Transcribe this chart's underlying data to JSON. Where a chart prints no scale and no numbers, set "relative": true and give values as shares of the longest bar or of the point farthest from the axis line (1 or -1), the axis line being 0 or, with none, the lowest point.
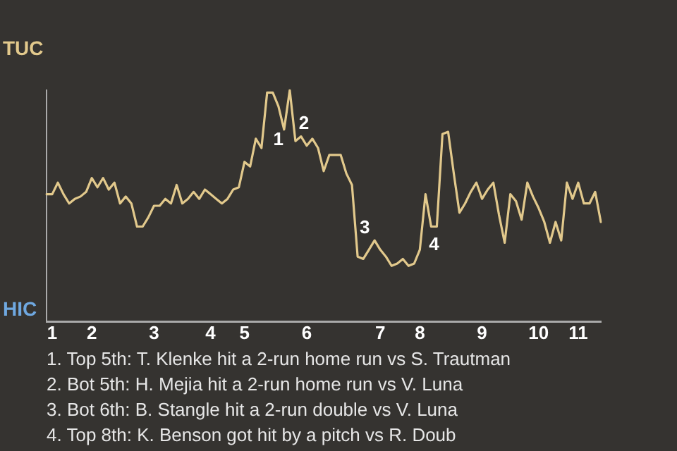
{
  "chart_data": {
    "type": "line",
    "relative": true,
    "categories": [
      null,
      "1",
      null,
      null,
      null,
      null,
      null,
      null,
      "2",
      null,
      null,
      null,
      null,
      null,
      null,
      null,
      null,
      null,
      null,
      "3",
      null,
      null,
      null,
      null,
      null,
      null,
      null,
      null,
      null,
      "4",
      null,
      null,
      null,
      null,
      null,
      "5",
      null,
      null,
      null,
      null,
      null,
      null,
      null,
      null,
      null,
      null,
      "6",
      null,
      null,
      null,
      null,
      null,
      null,
      null,
      null,
      null,
      null,
      null,
      null,
      "7",
      null,
      null,
      null,
      null,
      null,
      null,
      "8",
      null,
      null,
      null,
      null,
      null,
      null,
      null,
      null,
      null,
      null,
      "9",
      null,
      null,
      null,
      null,
      null,
      null,
      null,
      null,
      null,
      "10",
      null,
      null,
      null,
      null,
      null,
      null,
      "11",
      null,
      null,
      null,
      null
    ],
    "color": "#e2c98c",
    "values": [
      0.55,
      0.55,
      0.6,
      0.55,
      0.51,
      0.53,
      0.54,
      0.56,
      0.62,
      0.58,
      0.62,
      0.57,
      0.6,
      0.51,
      0.54,
      0.51,
      0.41,
      0.41,
      0.45,
      0.5,
      0.5,
      0.53,
      0.51,
      0.59,
      0.51,
      0.53,
      0.56,
      0.53,
      0.57,
      0.55,
      0.53,
      0.51,
      0.53,
      0.57,
      0.58,
      0.69,
      0.67,
      0.79,
      0.75,
      0.99,
      0.99,
      0.93,
      0.83,
      1,
      0.78,
      0.8,
      0.76,
      0.79,
      0.75,
      0.65,
      0.72,
      0.72,
      0.72,
      0.64,
      0.59,
      0.28,
      0.27,
      0.31,
      0.35,
      0.31,
      0.28,
      0.24,
      0.25,
      0.27,
      0.24,
      0.25,
      0.31,
      0.55,
      0.41,
      0.41,
      0.81,
      0.82,
      0.64,
      0.47,
      0.51,
      0.56,
      0.6,
      0.53,
      0.57,
      0.6,
      0.46,
      0.34,
      0.55,
      0.52,
      0.44,
      0.6,
      0.54,
      0.49,
      0.43,
      0.34,
      0.43,
      0.35,
      0.6,
      0.53,
      0.6,
      0.51,
      0.51,
      0.56,
      0.43
    ],
    "marker": "none",
    "annotations": [
      "TUC",
      "HIC",
      {
        "text": "1",
        "y": 0.93
      },
      {
        "text": "2",
        "y": 0.78
      },
      {
        "text": "3",
        "y": 0.28
      },
      {
        "text": "4",
        "y": 0.41
      },
      "1. Top 5th: T. Klenke hit a 2-run home run vs S. Trautman",
      "2. Bot 5th: H. Mejia hit a 2-run home run vs V. Luna",
      "3. Bot 6th: B. Stangle hit a 2-run double vs V. Luna",
      "4. Top 8th: K. Benson got hit by a pitch vs R. Doub"
    ]
  }
}
